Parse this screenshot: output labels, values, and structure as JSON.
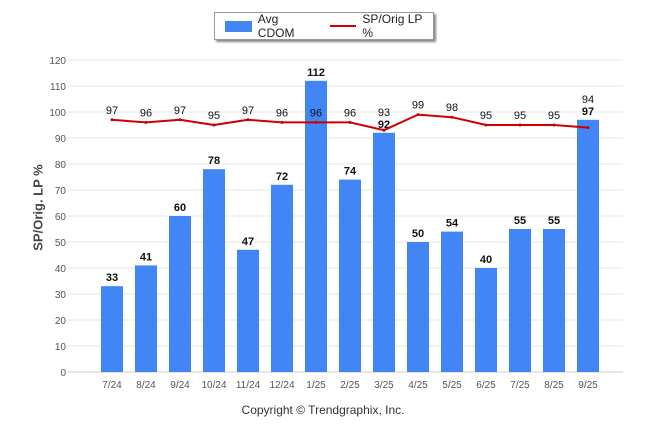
{
  "chart_data": {
    "type": "bar",
    "title": "",
    "xlabel": "",
    "ylabel": "SP/Orig. LP %",
    "ylim": [
      0,
      120
    ],
    "yticks": [
      0,
      10,
      20,
      30,
      40,
      50,
      60,
      70,
      80,
      90,
      100,
      110,
      120
    ],
    "categories": [
      "7/24",
      "8/24",
      "9/24",
      "10/24",
      "11/24",
      "12/24",
      "1/25",
      "2/25",
      "3/25",
      "4/25",
      "5/25",
      "6/25",
      "7/25",
      "8/25",
      "9/25"
    ],
    "series": [
      {
        "name": "Avg CDOM",
        "type": "bar",
        "color": "#4285f4",
        "values": [
          33,
          41,
          60,
          78,
          47,
          72,
          112,
          74,
          92,
          50,
          54,
          40,
          55,
          55,
          97
        ]
      },
      {
        "name": "SP/Orig LP %",
        "type": "line",
        "color": "#cc0000",
        "values": [
          97,
          96,
          97,
          95,
          97,
          96,
          96,
          96,
          93,
          99,
          98,
          95,
          95,
          95,
          94
        ]
      }
    ],
    "legend": "top-center",
    "grid": true
  },
  "footer": "Copyright © Trendgraphix, Inc."
}
